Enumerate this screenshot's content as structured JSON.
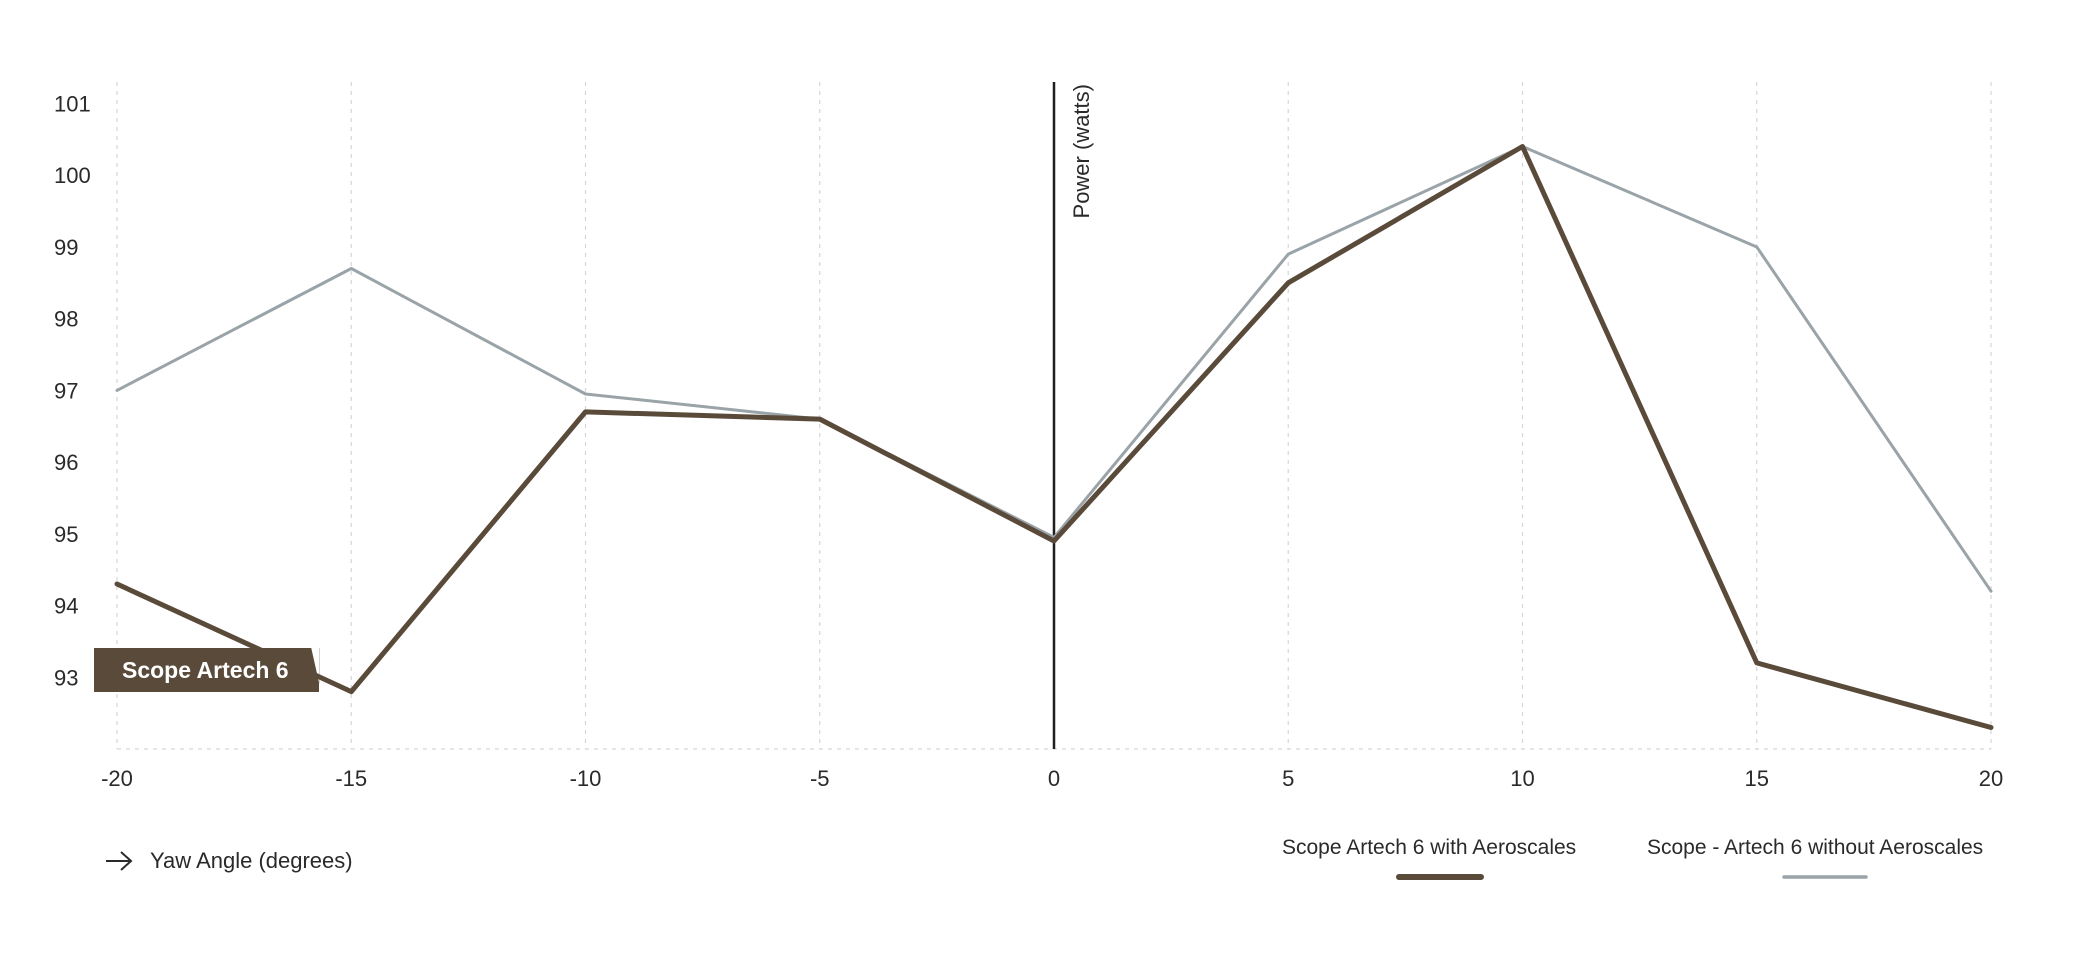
{
  "chart_data": {
    "type": "line",
    "x": [
      -20,
      -15,
      -10,
      -5,
      0,
      5,
      10,
      15,
      20
    ],
    "x_ticks": [
      "-20",
      "-15",
      "-10",
      "-5",
      "0",
      "5",
      "10",
      "15",
      "20"
    ],
    "y_ticks": [
      "93",
      "94",
      "95",
      "96",
      "97",
      "98",
      "99",
      "100",
      "101"
    ],
    "xlim": [
      -20,
      20
    ],
    "ylim": [
      92.0,
      101.3
    ],
    "xlabel": "Yaw Angle (degrees)",
    "ylabel": "Power (watts)",
    "grid": "vertical-dashed",
    "legend_position": "bottom-right",
    "series": [
      {
        "name": "Scope Artech 6 with Aeroscales",
        "color": "#5a4a3a",
        "values": [
          94.3,
          92.8,
          96.7,
          96.6,
          94.9,
          98.5,
          100.4,
          93.2,
          92.3
        ]
      },
      {
        "name": "Scope - Artech 6 without Aeroscales",
        "color": "#9aa4a8",
        "values": [
          97.0,
          98.7,
          96.95,
          96.6,
          94.95,
          98.9,
          100.4,
          99.0,
          94.2
        ]
      }
    ],
    "annotation": {
      "text": "Scope Artech 6",
      "series_index": 0,
      "x": -15,
      "y": 92.8
    }
  }
}
